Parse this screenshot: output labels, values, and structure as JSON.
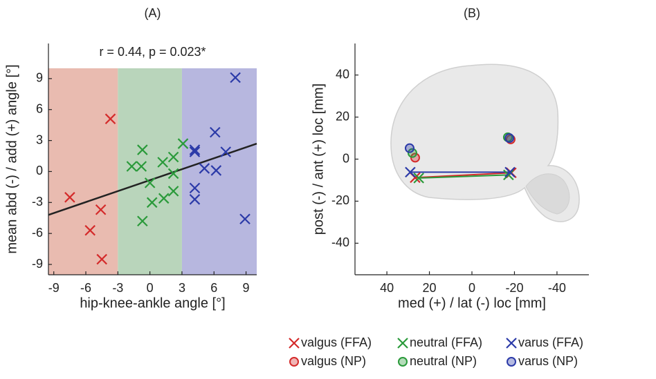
{
  "chart_data": [
    {
      "type": "scatter",
      "title": "(A)",
      "subtitle": "r = 0.44, p = 0.023*",
      "x_label": "hip-knee-ankle angle [°]",
      "y_label": "mean abd (-) / add (+) angle [°]",
      "xlim": [
        -9.5,
        10
      ],
      "ylim": [
        -10,
        12.4
      ],
      "xticks": [
        -9,
        -6,
        -3,
        0,
        3,
        6,
        9
      ],
      "yticks": [
        -9,
        -6,
        -3,
        0,
        3,
        6,
        9
      ],
      "regions": [
        {
          "x": [
            -9.5,
            -3
          ],
          "y": [
            -10,
            10
          ],
          "color": "#e9bbb0"
        },
        {
          "x": [
            -3,
            3
          ],
          "y": [
            -10,
            10
          ],
          "color": "#b9d5bb"
        },
        {
          "x": [
            3,
            10
          ],
          "y": [
            -10,
            10
          ],
          "color": "#b7b7df"
        }
      ],
      "fit": {
        "x": [
          -9.5,
          10
        ],
        "values": [
          -4.2,
          2.7
        ],
        "color": "#222222"
      },
      "series": [
        {
          "color": "#d42a2a",
          "marker": "x",
          "x": [
            -3.7,
            -7.5,
            -4.6,
            -5.6,
            -4.5
          ],
          "values": [
            5.1,
            -2.5,
            -3.7,
            -5.7,
            -8.5
          ]
        },
        {
          "color": "#2a9a3a",
          "marker": "x",
          "x": [
            -1.7,
            -0.8,
            -0.7,
            0,
            0.2,
            -0.7,
            1.2,
            2.2,
            2.2,
            2.2,
            1.3,
            3.1
          ],
          "values": [
            0.5,
            0.5,
            2.1,
            -1.1,
            -3,
            -4.8,
            0.9,
            1.4,
            -0.2,
            -1.9,
            -2.6,
            2.7
          ]
        },
        {
          "color": "#2b3aa8",
          "marker": "x",
          "x": [
            4.2,
            4.2,
            4.2,
            4.2,
            5.1,
            6.1,
            6.2,
            7.1,
            8,
            8.9
          ],
          "values": [
            1.9,
            2.1,
            -1.6,
            -2.7,
            0.3,
            3.8,
            0.1,
            1.9,
            9.1,
            -4.6
          ]
        }
      ]
    },
    {
      "type": "scatter",
      "title": "(B)",
      "x_label": "med (+) / lat (-) loc [mm]",
      "y_label": "post (-) / ant (+) loc [mm]",
      "xlim": [
        55,
        -55
      ],
      "ylim": [
        -55,
        55
      ],
      "xticks": [
        40,
        20,
        0,
        -20,
        -40
      ],
      "yticks": [
        -40,
        -20,
        0,
        20,
        40
      ],
      "series": [
        {
          "name": "valgus (FFA)",
          "color": "#d42a2a",
          "marker": "x",
          "connect": true,
          "x": [
            26.7,
            -18.5
          ],
          "values": [
            -8.8,
            -6.5
          ]
        },
        {
          "name": "neutral (FFA)",
          "color": "#2a9a3a",
          "marker": "x",
          "connect": true,
          "x": [
            25,
            -17.2
          ],
          "values": [
            -9,
            -7.5
          ]
        },
        {
          "name": "varus (FFA)",
          "color": "#2b3aa8",
          "marker": "x",
          "connect": true,
          "x": [
            29,
            -17.9
          ],
          "values": [
            -6.2,
            -6.2
          ]
        },
        {
          "name": "valgus (NP)",
          "color": "#d42a2a",
          "marker": "o",
          "x": [
            26.7,
            -18.2
          ],
          "values": [
            0.7,
            9.4
          ]
        },
        {
          "name": "neutral (NP)",
          "color": "#2a9a3a",
          "marker": "o",
          "x": [
            28,
            -16.9
          ],
          "values": [
            2.9,
            10.4
          ]
        },
        {
          "name": "varus (NP)",
          "color": "#2b3aa8",
          "marker": "o",
          "x": [
            29.3,
            -17.6
          ],
          "values": [
            5.2,
            10
          ]
        }
      ]
    }
  ]
}
